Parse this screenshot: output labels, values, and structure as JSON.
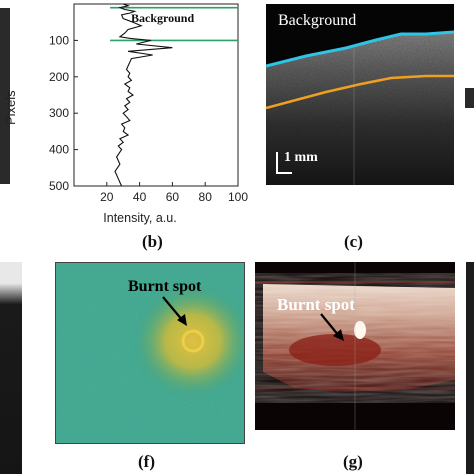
{
  "panel_b": {
    "caption": "(b)",
    "ylabel": "Pixels",
    "xlabel": "Intensity, a.u.",
    "annotation": "Background",
    "chart_data": {
      "type": "line",
      "orientation": "vertical-profile",
      "xlim": [
        0,
        100
      ],
      "ylim": [
        500,
        0
      ],
      "xticks": [
        "20",
        "40",
        "60",
        "80",
        "100"
      ],
      "yticks": [
        "100",
        "200",
        "300",
        "400",
        "500"
      ],
      "series": [
        {
          "x": [
            30,
            33,
            28,
            31,
            37,
            34,
            29,
            30,
            36,
            41,
            33,
            31,
            28,
            35,
            47,
            38,
            60,
            33,
            48,
            35,
            34,
            33,
            32,
            34,
            33,
            35,
            31,
            34,
            33,
            36,
            32,
            34,
            31,
            33,
            30,
            32,
            34,
            29,
            31,
            30,
            33,
            28,
            30,
            27,
            29,
            26,
            28,
            25,
            27,
            28,
            29
          ],
          "y": [
            0,
            5,
            10,
            15,
            20,
            25,
            30,
            40,
            50,
            60,
            70,
            80,
            90,
            95,
            100,
            110,
            120,
            130,
            140,
            150,
            160,
            170,
            180,
            190,
            200,
            210,
            220,
            230,
            240,
            250,
            260,
            270,
            280,
            290,
            300,
            310,
            320,
            330,
            340,
            350,
            360,
            370,
            380,
            390,
            400,
            420,
            440,
            460,
            480,
            490,
            500
          ]
        }
      ],
      "boundaries_y": [
        10,
        100
      ],
      "boundary_color": "#2e9e6a"
    }
  },
  "panel_c": {
    "caption": "(c)",
    "label": "Background",
    "scale": "1 mm",
    "surface_color": "#2fc4e6",
    "layer_color": "#f0a020"
  },
  "panel_f": {
    "caption": "(f)",
    "label": "Burnt spot"
  },
  "panel_g": {
    "caption": "(g)",
    "label": "Burnt spot"
  }
}
